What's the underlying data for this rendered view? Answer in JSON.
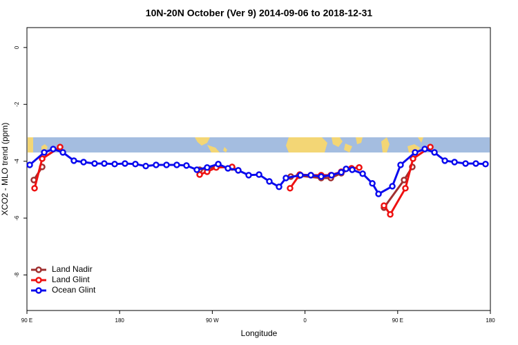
{
  "chart_data": {
    "type": "line",
    "title": "10N-20N October (Ver 9)   2014-09-06 to 2018-12-31",
    "x_label": "Longitude",
    "y_label": "XCO2 - MLO trend (ppm)",
    "xlim": [
      90,
      540
    ],
    "ylim": [
      -9.25,
      0.7
    ],
    "xticks": [
      {
        "value": 90,
        "label": "90 E"
      },
      180,
      {
        "value": 270,
        "label": "90 W"
      },
      {
        "value": 360,
        "label": "0"
      },
      {
        "value": 450,
        "label": "90 E"
      },
      {
        "value": 540,
        "label": "180"
      }
    ],
    "yticks": [
      0,
      -2,
      -4,
      -6,
      -8
    ],
    "legend": "bottom-left",
    "series": [
      {
        "name": "Land Nadir",
        "color": "#a03030",
        "x": [
          96.7,
          104.8,
          null,
          257.7,
          273.8,
          289.2,
          295.2,
          null,
          346.2,
          354.2,
          375.7,
          385.1,
          395.2,
          405.2,
          412.6,
          null,
          436.7,
          456.2,
          464.2
        ],
        "values": [
          -4.66,
          -4.2,
          null,
          -4.3,
          -4.2,
          -4.22,
          -4.32,
          null,
          -4.54,
          -4.51,
          -4.59,
          -4.59,
          -4.42,
          -4.25,
          -4.22,
          null,
          -5.63,
          -4.66,
          -4.2
        ]
      },
      {
        "name": "Land Glint",
        "color": "#ee1111",
        "x": [
          97.4,
          104.8,
          122.2,
          null,
          257.7,
          265,
          273.8,
          289.2,
          null,
          345.5,
          354.9,
          365.7,
          375.7,
          385.1,
          395.2,
          405.2,
          412.6,
          null,
          436.7,
          442.8,
          457.5,
          464.9,
          481.7
        ],
        "values": [
          -4.95,
          -3.91,
          -3.5,
          null,
          -4.47,
          -4.37,
          -4.22,
          -4.2,
          null,
          -4.95,
          -4.47,
          -4.49,
          -4.49,
          -4.49,
          -4.37,
          -4.25,
          -4.22,
          null,
          -5.56,
          -5.87,
          -4.95,
          -3.91,
          -3.5
        ]
      },
      {
        "name": "Ocean Glint",
        "color": "#0a0aee",
        "x": [
          92.7,
          106.8,
          115.5,
          124.9,
          135.6,
          145,
          155.7,
          165.1,
          175.2,
          185.2,
          195.3,
          205.4,
          215.4,
          225.5,
          235.5,
          244.9,
          255,
          265,
          275.8,
          285.2,
          295.2,
          305.3,
          315.4,
          325.4,
          334.8,
          341.5,
          355.6,
          365.7,
          375.7,
          385.8,
          395.2,
          399.9,
          405.9,
          416,
          425.4,
          431.4,
          444.8,
          452.8,
          466.9,
          476.3,
          485.7,
          495.8,
          505.2,
          515.9,
          525.9,
          535.3
        ],
        "values": [
          -4.13,
          -3.69,
          -3.57,
          -3.69,
          -3.98,
          -4.03,
          -4.08,
          -4.08,
          -4.1,
          -4.08,
          -4.1,
          -4.17,
          -4.13,
          -4.13,
          -4.13,
          -4.15,
          -4.3,
          -4.22,
          -4.1,
          -4.25,
          -4.32,
          -4.49,
          -4.47,
          -4.71,
          -4.9,
          -4.59,
          -4.49,
          -4.49,
          -4.54,
          -4.49,
          -4.39,
          -4.27,
          -4.3,
          -4.44,
          -4.78,
          -5.15,
          -4.88,
          -4.13,
          -3.69,
          -3.57,
          -3.69,
          -3.98,
          -4.03,
          -4.08,
          -4.08,
          -4.1
        ]
      }
    ]
  }
}
